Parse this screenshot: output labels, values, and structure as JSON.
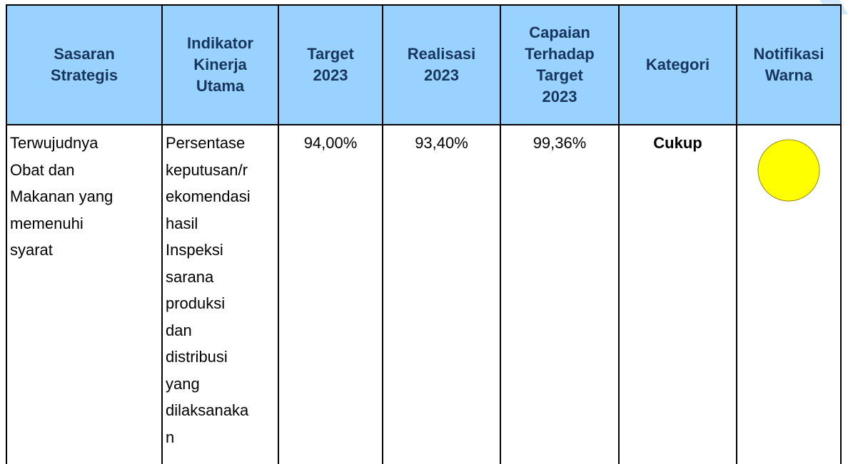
{
  "table": {
    "headers": [
      [
        "Sasaran",
        "Strategis"
      ],
      [
        "Indikator",
        "Kinerja",
        "Utama"
      ],
      [
        "Target",
        "2023"
      ],
      [
        "Realisasi",
        "2023"
      ],
      [
        "Capaian",
        "Terhadap",
        "Target",
        "2023"
      ],
      [
        "Kategori"
      ],
      [
        "Notifikasi",
        "Warna"
      ]
    ],
    "rows": [
      [
        [
          "Terwujudnya",
          "Obat dan",
          "Makanan yang",
          "memenuhi",
          "syarat"
        ],
        [
          "Persentase",
          "keputusan/r",
          "ekomendasi",
          "hasil",
          "Inspeksi",
          "sarana",
          "produksi",
          "dan",
          "distribusi",
          "yang",
          "dilaksanaka",
          "n"
        ],
        [
          "94,00%"
        ],
        [
          "93,40%"
        ],
        [
          "99,36%"
        ],
        [
          "Cukup"
        ],
        []
      ]
    ]
  }
}
